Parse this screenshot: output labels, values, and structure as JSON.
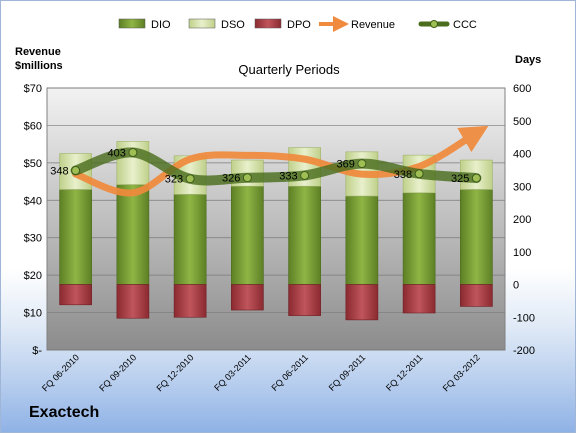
{
  "chart_data": {
    "type": "bar",
    "title": "Quarterly Periods",
    "left_axis_label": "Revenue $millions",
    "right_axis_label": "Days",
    "company": "Exactech",
    "categories": [
      "FQ 06-2010",
      "FQ 09-2010",
      "FQ 12-2010",
      "FQ 03-2011",
      "FQ 06-2011",
      "FQ 09-2011",
      "FQ 12-2011",
      "FQ 03-2012"
    ],
    "left_ticks": [
      "$-",
      "$10",
      "$20",
      "$30",
      "$40",
      "$50",
      "$60",
      "$70"
    ],
    "right_ticks": [
      "-200",
      "-100",
      "0",
      "100",
      "200",
      "300",
      "400",
      "500",
      "600"
    ],
    "ylim_left": [
      0,
      70
    ],
    "ylim_right": [
      -200,
      600
    ],
    "grid": true,
    "legend_position": "top",
    "series": [
      {
        "name": "DIO",
        "kind": "bar",
        "axis": "right",
        "color": "#7ea33a",
        "values": [
          290,
          305,
          275,
          300,
          300,
          270,
          280,
          290
        ]
      },
      {
        "name": "DSO",
        "kind": "bar-stacked",
        "axis": "right",
        "color": "#d7e4b0",
        "values": [
          110,
          132,
          118,
          80,
          118,
          135,
          115,
          90
        ]
      },
      {
        "name": "DPO",
        "kind": "bar-negative",
        "axis": "right",
        "color": "#b04048",
        "values": [
          -62,
          -103,
          -100,
          -78,
          -95,
          -108,
          -87,
          -67
        ]
      },
      {
        "name": "Revenue",
        "kind": "line",
        "axis": "left",
        "color": "#f08a3c",
        "values": [
          47,
          42,
          51,
          52,
          51,
          47,
          49,
          58
        ]
      },
      {
        "name": "CCC",
        "kind": "line",
        "axis": "right",
        "color": "#4a6e1e",
        "values": [
          348,
          403,
          323,
          326,
          333,
          369,
          338,
          325
        ],
        "labels": [
          "348",
          "403",
          "323",
          "326",
          "333",
          "369",
          "338",
          "325"
        ]
      }
    ]
  }
}
